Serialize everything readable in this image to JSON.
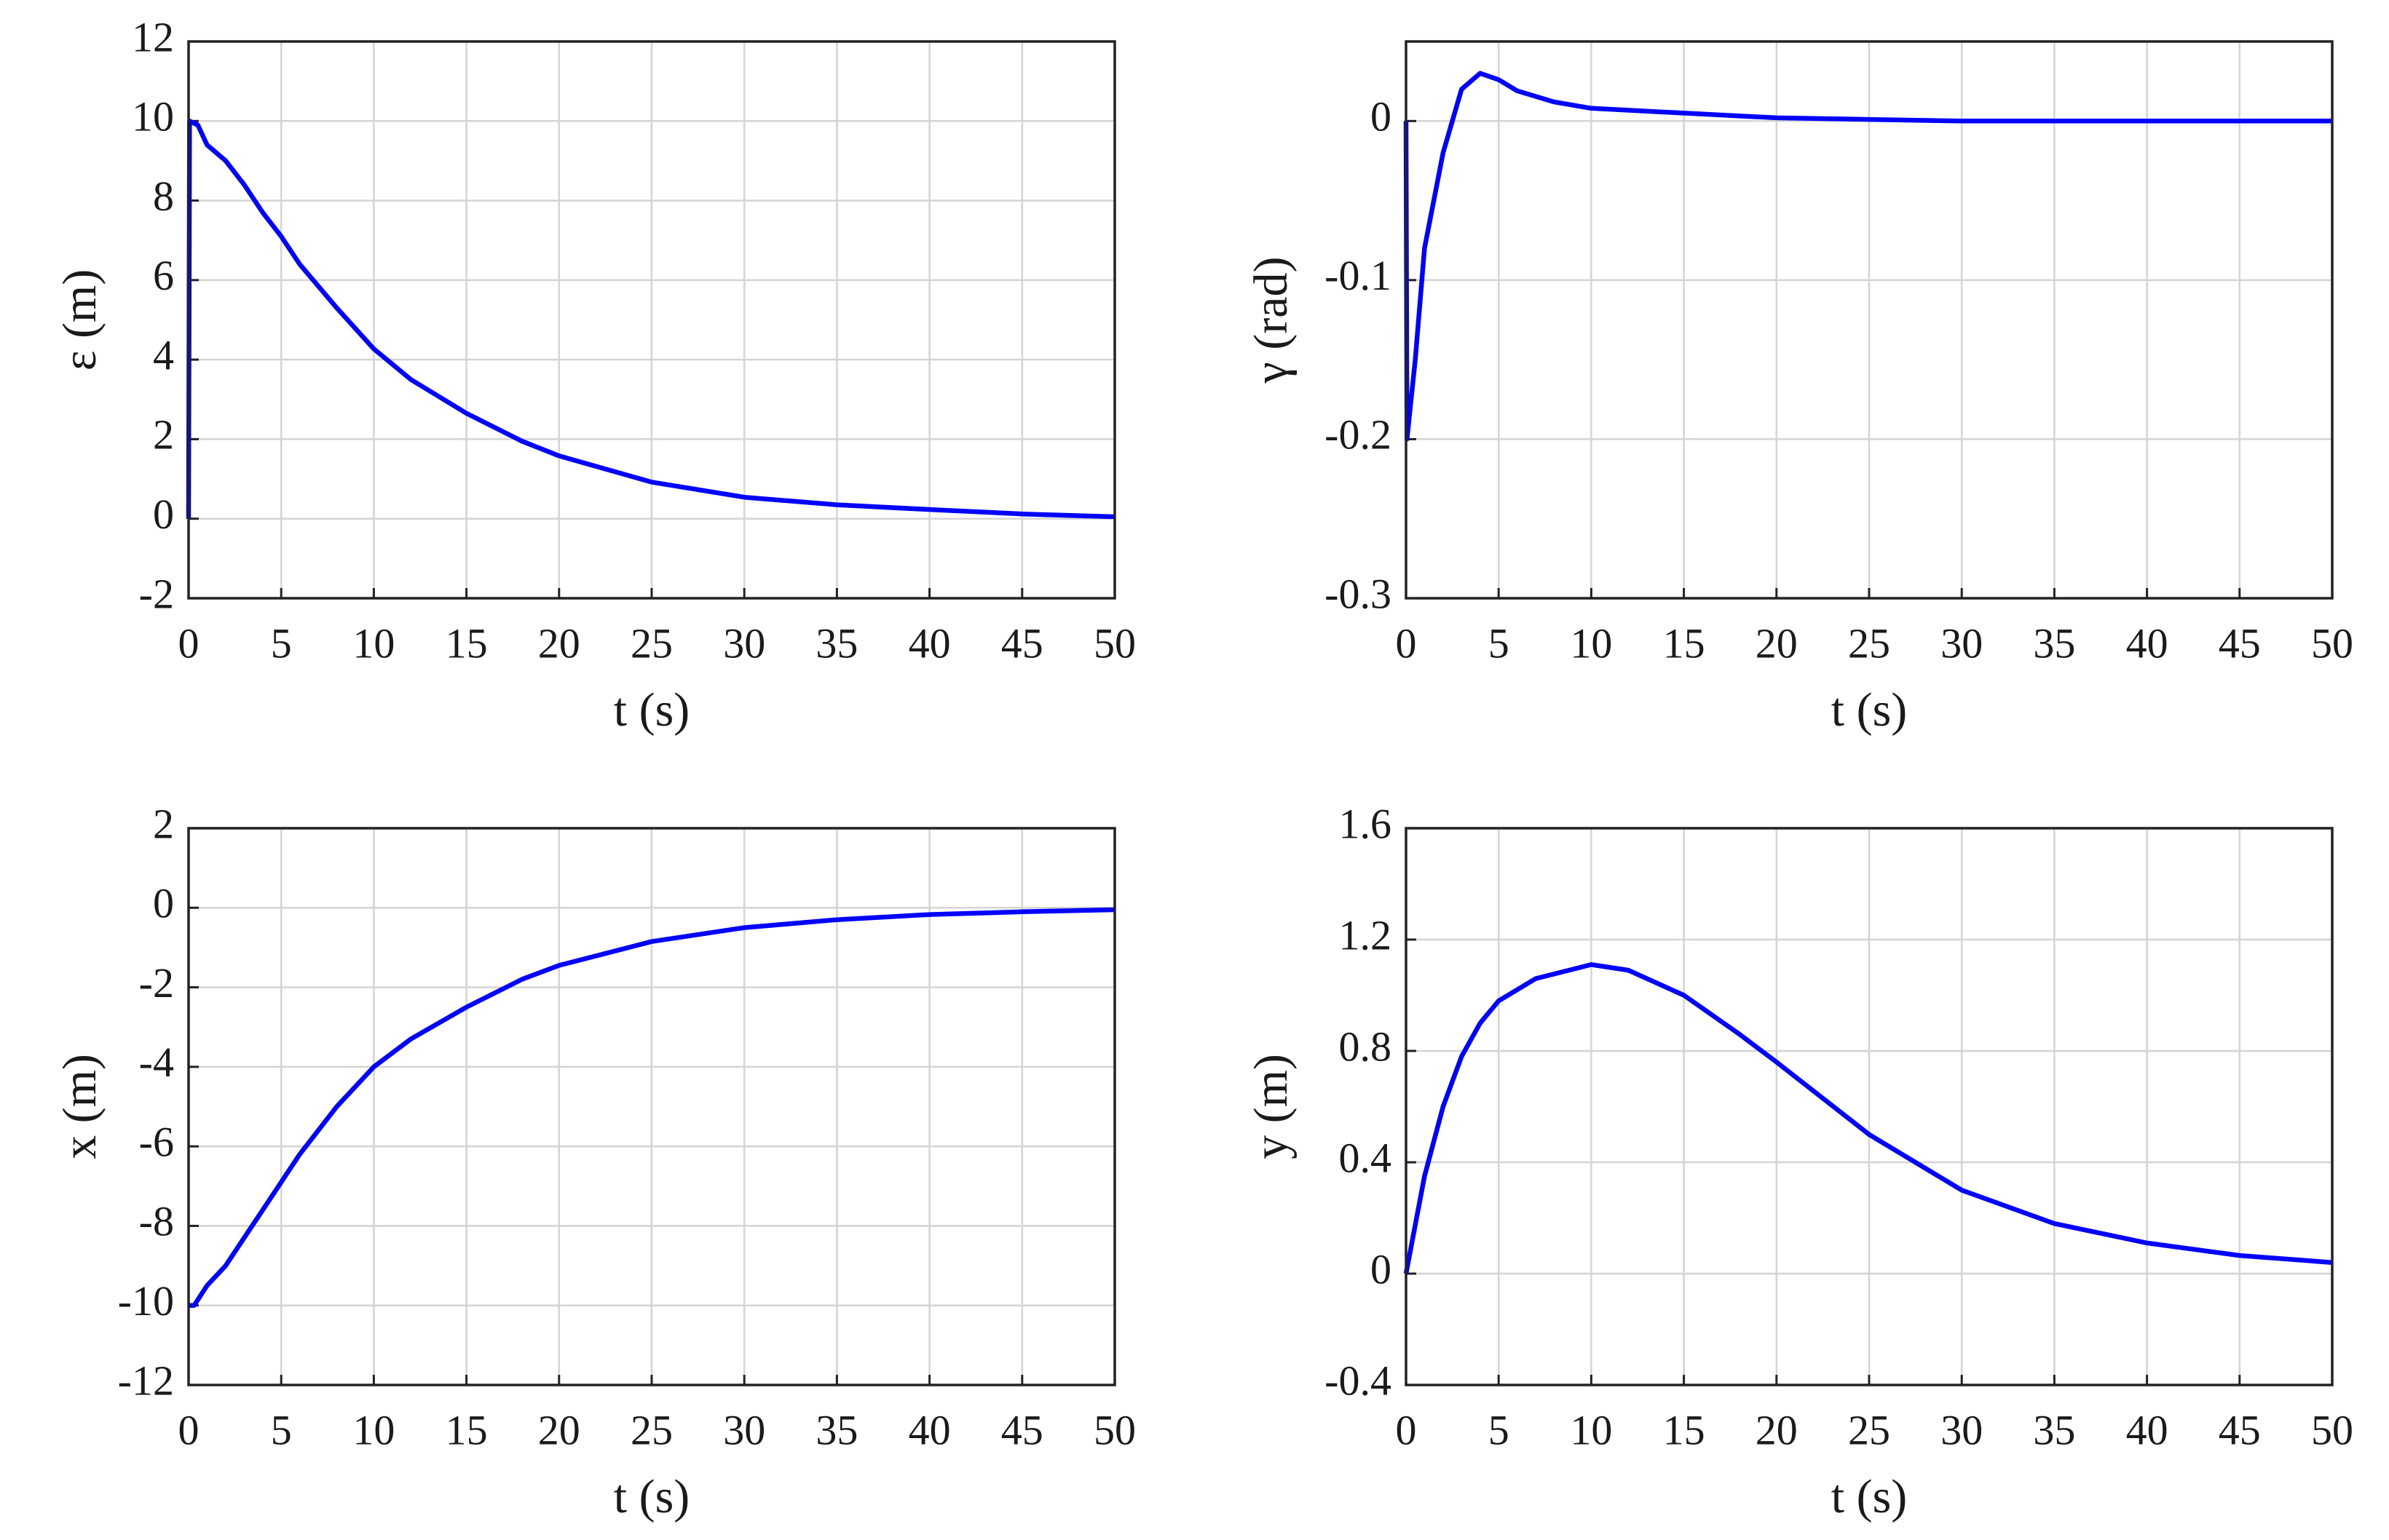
{
  "chart_data": [
    {
      "type": "line",
      "xlabel": "t (s)",
      "ylabel": "ε (m)",
      "x": [
        0,
        0.05,
        0.5,
        1,
        2,
        3,
        4,
        5,
        6,
        8,
        10,
        12,
        15,
        18,
        20,
        25,
        30,
        35,
        40,
        45,
        50
      ],
      "series": [
        {
          "name": "ε",
          "color": "#0000ff",
          "values": [
            0,
            10,
            9.9,
            9.4,
            9.0,
            8.4,
            7.7,
            7.1,
            6.4,
            5.3,
            4.27,
            3.5,
            2.65,
            1.95,
            1.58,
            0.92,
            0.54,
            0.35,
            0.23,
            0.12,
            0.05
          ]
        }
      ],
      "xlim": [
        0,
        50
      ],
      "xticks": [
        0,
        5,
        10,
        15,
        20,
        25,
        30,
        35,
        40,
        45,
        50
      ],
      "ylim": [
        -2,
        12
      ],
      "yticks": [
        -2,
        0,
        2,
        4,
        6,
        8,
        10,
        12
      ],
      "grid": true
    },
    {
      "type": "line",
      "xlabel": "t (s)",
      "ylabel": "γ (rad)",
      "x": [
        0,
        0.05,
        0.5,
        1,
        2,
        3,
        4,
        5,
        6,
        8,
        10,
        15,
        20,
        25,
        30,
        35,
        40,
        45,
        50
      ],
      "series": [
        {
          "name": "γ",
          "color": "#0000ff",
          "values": [
            0,
            -0.2,
            -0.15,
            -0.08,
            -0.02,
            0.02,
            0.03,
            0.026,
            0.019,
            0.012,
            0.008,
            0.005,
            0.002,
            0.001,
            0,
            0,
            0,
            0,
            0
          ]
        }
      ],
      "xlim": [
        0,
        50
      ],
      "xticks": [
        0,
        5,
        10,
        15,
        20,
        25,
        30,
        35,
        40,
        45,
        50
      ],
      "ylim": [
        -0.3,
        0.05
      ],
      "yticks": [
        -0.3,
        -0.2,
        -0.1,
        0
      ],
      "grid": true
    },
    {
      "type": "line",
      "xlabel": "t (s)",
      "ylabel": "x (m)",
      "x": [
        0,
        0.3,
        1,
        2,
        3,
        4,
        5,
        6,
        8,
        10,
        12,
        15,
        18,
        20,
        25,
        30,
        35,
        40,
        45,
        50
      ],
      "series": [
        {
          "name": "x",
          "color": "#0000ff",
          "values": [
            -10,
            -10,
            -9.5,
            -9.0,
            -8.3,
            -7.6,
            -6.9,
            -6.2,
            -5.0,
            -4.0,
            -3.3,
            -2.5,
            -1.8,
            -1.45,
            -0.85,
            -0.5,
            -0.3,
            -0.17,
            -0.1,
            -0.05
          ]
        }
      ],
      "xlim": [
        0,
        50
      ],
      "xticks": [
        0,
        5,
        10,
        15,
        20,
        25,
        30,
        35,
        40,
        45,
        50
      ],
      "ylim": [
        -12,
        2
      ],
      "yticks": [
        -12,
        -10,
        -8,
        -6,
        -4,
        -2,
        0,
        2
      ],
      "grid": true
    },
    {
      "type": "line",
      "xlabel": "t (s)",
      "ylabel": "y (m)",
      "x": [
        0,
        1,
        2,
        3,
        4,
        5,
        7,
        10,
        12,
        15,
        18,
        20,
        25,
        30,
        35,
        40,
        45,
        50
      ],
      "series": [
        {
          "name": "y",
          "color": "#0000ff",
          "values": [
            0,
            0.35,
            0.6,
            0.78,
            0.9,
            0.98,
            1.06,
            1.11,
            1.09,
            1.0,
            0.86,
            0.76,
            0.5,
            0.3,
            0.18,
            0.11,
            0.065,
            0.04
          ]
        }
      ],
      "xlim": [
        0,
        50
      ],
      "xticks": [
        0,
        5,
        10,
        15,
        20,
        25,
        30,
        35,
        40,
        45,
        50
      ],
      "ylim": [
        -0.4,
        1.6
      ],
      "yticks": [
        -0.4,
        0,
        0.4,
        0.8,
        1.2,
        1.6
      ],
      "grid": true
    }
  ]
}
